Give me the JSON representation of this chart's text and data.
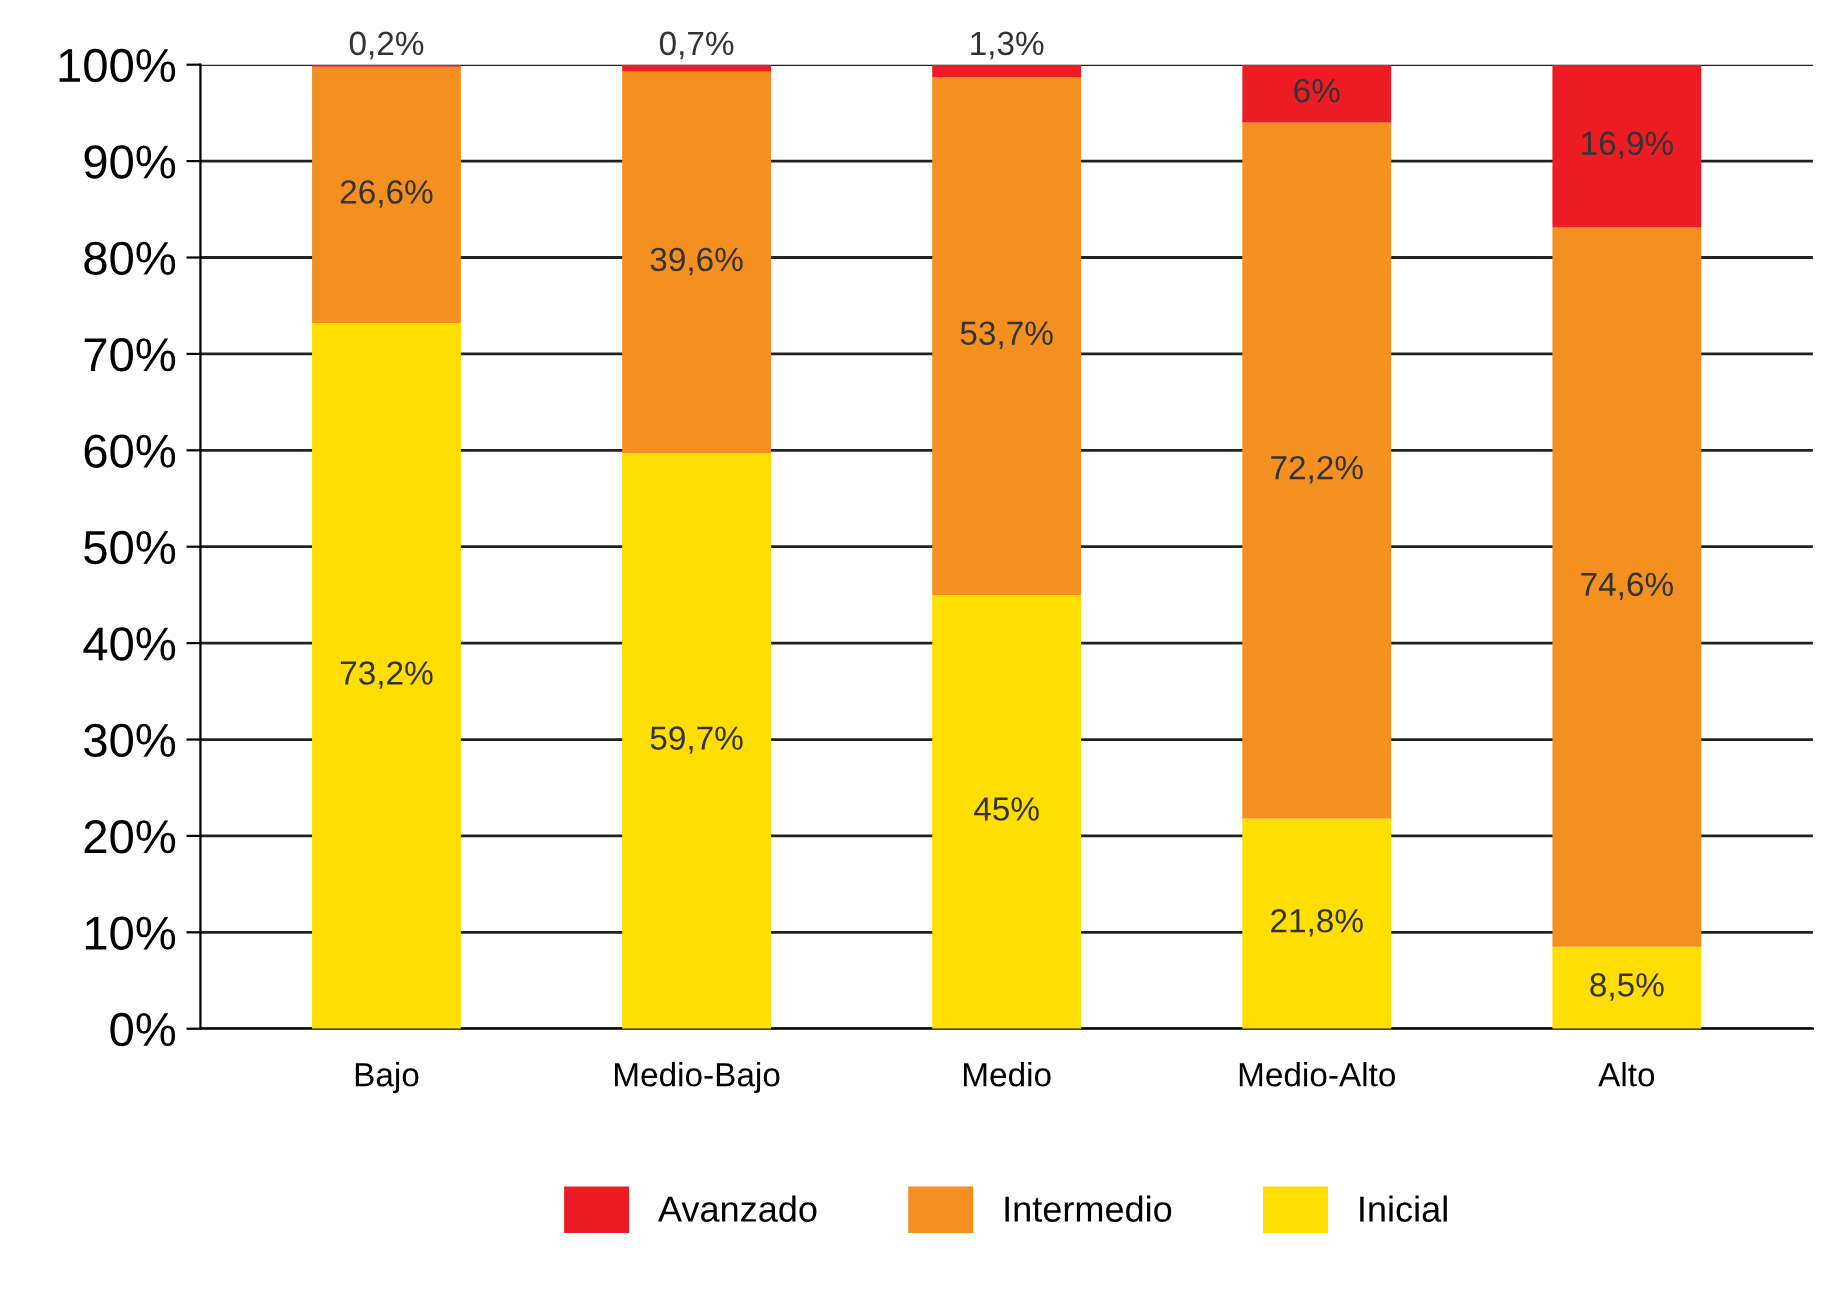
{
  "chart_data": {
    "type": "bar",
    "stacked": true,
    "categories": [
      "Bajo",
      "Medio-Bajo",
      "Medio",
      "Medio-Alto",
      "Alto"
    ],
    "series": [
      {
        "name": "Inicial",
        "color": "#ffde00",
        "values": [
          73.2,
          59.7,
          45,
          21.8,
          8.5
        ],
        "value_labels": [
          "73,2%",
          "59,7%",
          "45%",
          "21,8%",
          "8,5%"
        ]
      },
      {
        "name": "Intermedio",
        "color": "#f39020",
        "values": [
          26.6,
          39.6,
          53.7,
          72.2,
          74.6
        ],
        "value_labels": [
          "26,6%",
          "39,6%",
          "53,7%",
          "72,2%",
          "74,6%"
        ]
      },
      {
        "name": "Avanzado",
        "color": "#ed1c24",
        "values": [
          0.2,
          0.7,
          1.3,
          6,
          16.9
        ],
        "value_labels": [
          "0,2%",
          "0,7%",
          "1,3%",
          "6%",
          "16,9%"
        ]
      }
    ],
    "ylim": [
      0,
      100
    ],
    "yticks": [
      {
        "value": 0,
        "label": "0%"
      },
      {
        "value": 10,
        "label": "10%"
      },
      {
        "value": 20,
        "label": "20%"
      },
      {
        "value": 30,
        "label": "30%"
      },
      {
        "value": 40,
        "label": "40%"
      },
      {
        "value": 50,
        "label": "50%"
      },
      {
        "value": 60,
        "label": "60%"
      },
      {
        "value": 70,
        "label": "70%"
      },
      {
        "value": 80,
        "label": "80%"
      },
      {
        "value": 90,
        "label": "90%"
      },
      {
        "value": 100,
        "label": "100%"
      }
    ],
    "grid": "y",
    "legend": "bottom"
  }
}
